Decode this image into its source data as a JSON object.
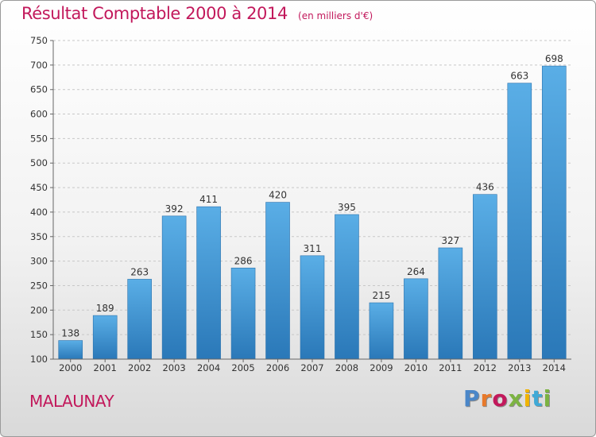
{
  "header": {
    "title": "Résultat Comptable 2000 à 2014",
    "unit": "(en milliers d'€)"
  },
  "footer": {
    "place": "MALAUNAY",
    "brand": "Proxiti",
    "brand_colors": [
      "#4a86c8",
      "#e8792a",
      "#c2185b",
      "#7cb342",
      "#f0b400",
      "#3fa9d6",
      "#7cb342"
    ]
  },
  "colors": {
    "accent": "#c2185b",
    "bar_top": "#5aaee6",
    "bar_bottom": "#2a78b8"
  },
  "chart_data": {
    "type": "bar",
    "title": "Résultat Comptable 2000 à 2014",
    "xlabel": "",
    "ylabel": "",
    "categories": [
      "2000",
      "2001",
      "2002",
      "2003",
      "2004",
      "2005",
      "2006",
      "2007",
      "2008",
      "2009",
      "2010",
      "2011",
      "2012",
      "2013",
      "2014"
    ],
    "values": [
      138,
      189,
      263,
      392,
      411,
      286,
      420,
      311,
      395,
      215,
      264,
      327,
      436,
      663,
      698
    ],
    "ylim": [
      100,
      750
    ],
    "yticks": [
      100,
      150,
      200,
      250,
      300,
      350,
      400,
      450,
      500,
      550,
      600,
      650,
      700,
      750
    ],
    "grid": true,
    "data_labels": true
  }
}
